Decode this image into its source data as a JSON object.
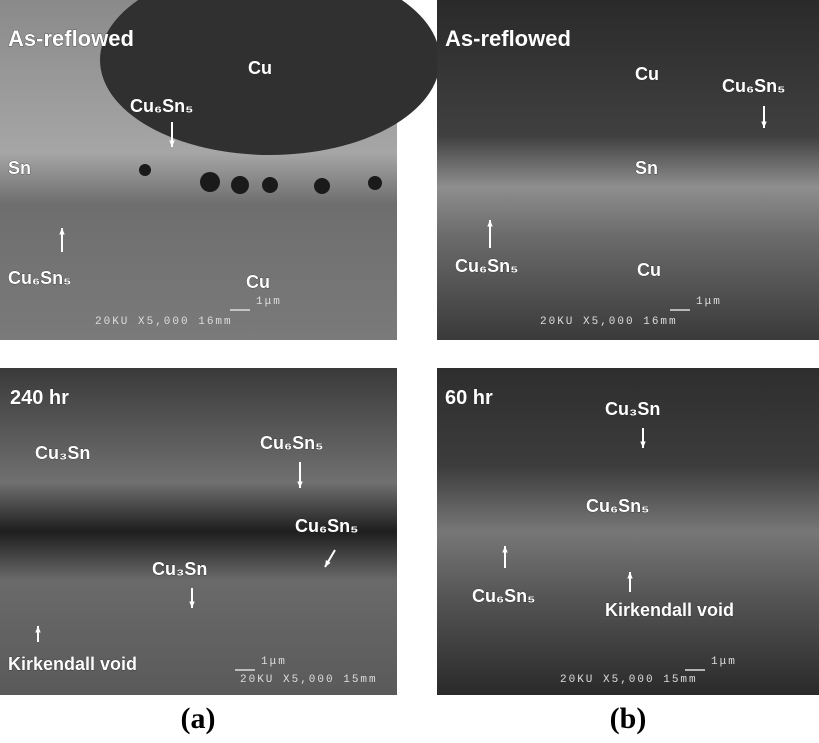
{
  "panels": [
    {
      "labels": [
        "As-reflowed",
        "Cu",
        "Cu₆Sn₅",
        "Sn",
        "Cu₆Sn₅",
        "Cu"
      ],
      "scale": "1μm",
      "info": "20KU X5,000 16mm"
    },
    {
      "labels": [
        "As-reflowed",
        "Cu",
        "Cu₆Sn₅",
        "Sn",
        "Cu₆Sn₅",
        "Cu"
      ],
      "scale": "1μm",
      "info": "20KU X5,000 16mm"
    },
    {
      "labels": [
        "240 hr",
        "Cu₃Sn",
        "Cu₆Sn₅",
        "Cu₆Sn₅",
        "Cu₃Sn",
        "Kirkendall void"
      ],
      "scale": "1μm",
      "info": "20KU X5,000 15mm"
    },
    {
      "labels": [
        "60 hr",
        "Cu₃Sn",
        "Cu₆Sn₅",
        "Cu₆Sn₅",
        "Kirkendall void"
      ],
      "scale": "1μm",
      "info": "20KU X5,000 15mm"
    }
  ],
  "captions": [
    "(a)",
    "(b)"
  ]
}
